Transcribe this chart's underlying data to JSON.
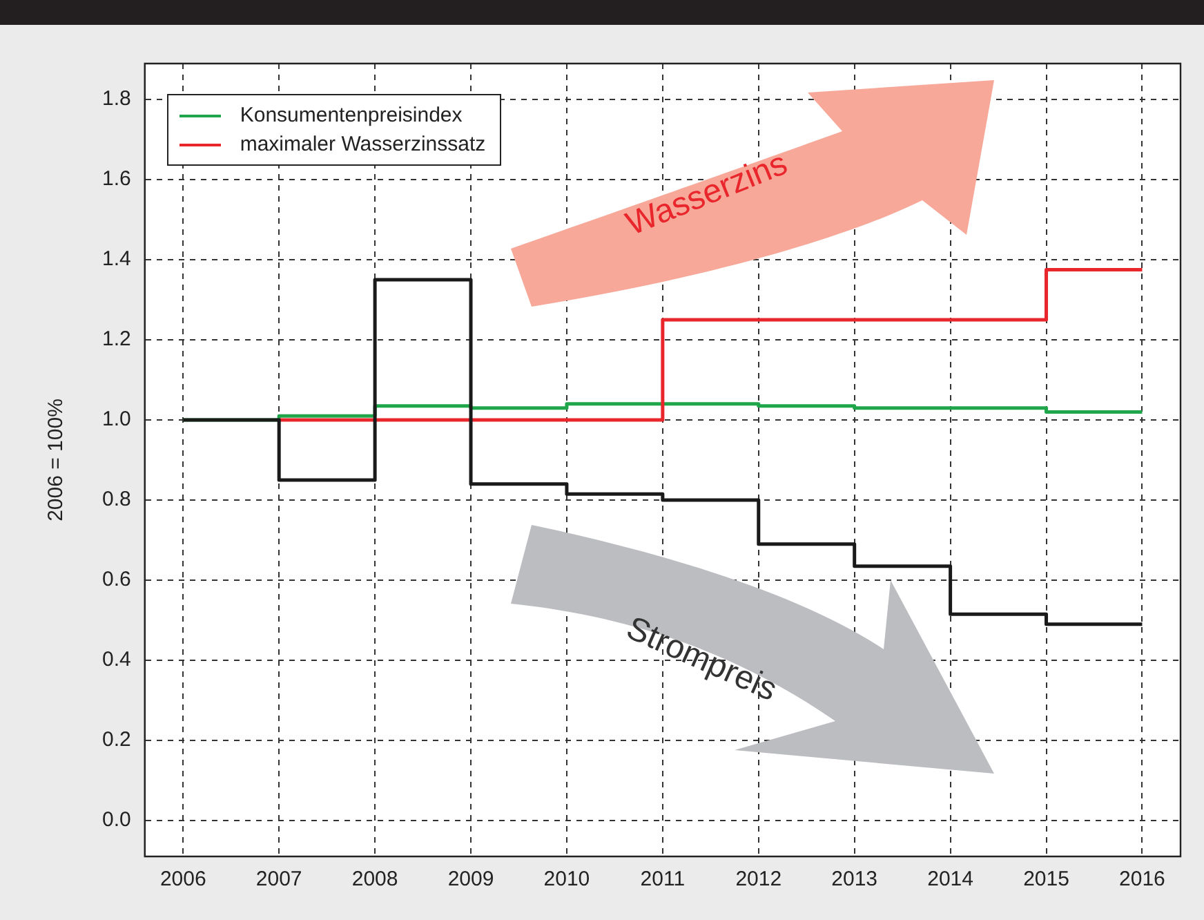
{
  "chart_data": {
    "type": "step",
    "ylabel": "2006 = 100%",
    "x": [
      2006,
      2007,
      2008,
      2009,
      2010,
      2011,
      2012,
      2013,
      2014,
      2015,
      2016
    ],
    "series": [
      {
        "color": "#1a1a1a",
        "values": [
          1.0,
          0.85,
          1.35,
          0.84,
          0.815,
          0.8,
          0.69,
          0.635,
          0.515,
          0.49,
          0.49
        ]
      },
      {
        "name": "maximaler Wasserzinssatz",
        "color": "#e8262c",
        "values": [
          null,
          1.0,
          1.0,
          1.0,
          1.0,
          1.25,
          1.25,
          1.25,
          1.25,
          1.375,
          1.375
        ]
      },
      {
        "name": "Konsumentenpreisindex",
        "color": "#1fa64a",
        "values": [
          1.0,
          1.01,
          1.035,
          1.03,
          1.04,
          1.04,
          1.035,
          1.03,
          1.03,
          1.02,
          1.02
        ]
      }
    ],
    "xlim": [
      2005.6,
      2016.4
    ],
    "xticks": [
      2006,
      2007,
      2008,
      2009,
      2010,
      2011,
      2012,
      2013,
      2014,
      2015,
      2016
    ],
    "ylim": [
      -0.09,
      1.89
    ],
    "yticks": [
      {
        "value": 0,
        "label": "0.0"
      },
      0.2,
      0.4,
      0.6,
      0.8,
      {
        "value": 1,
        "label": "1.0"
      },
      1.2,
      1.4,
      1.6,
      1.8
    ],
    "grid": true,
    "legend": "top left",
    "marker": "none",
    "line_style": "solid",
    "annotations": [
      "Wasserzins",
      "Strompreis"
    ]
  }
}
